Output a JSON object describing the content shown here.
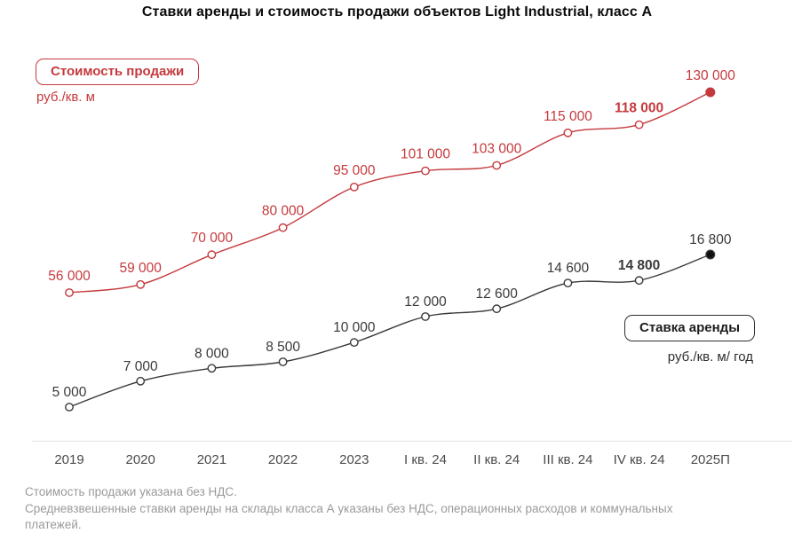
{
  "title": "Ставки аренды и стоимость продажи объектов Light Industrial, класс А",
  "colors": {
    "sale_series": "#c5393d",
    "rent_series": "#3a3a3a",
    "rent_final_dot": "#111111",
    "axis_line": "#e3e3e3",
    "tick_label": "#4a4a4a",
    "footnote": "#9a9a9a"
  },
  "legend": {
    "sale": {
      "label": "Стоимость продажи",
      "unit": "руб./кв. м"
    },
    "rent": {
      "label": "Ставка аренды",
      "unit": "руб./кв. м/ год"
    }
  },
  "chart_data": {
    "type": "line",
    "title": "Ставки аренды и стоимость продажи объектов Light Industrial, класс А",
    "categories": [
      "2019",
      "2020",
      "2021",
      "2022",
      "2023",
      "I кв. 24",
      "II кв. 24",
      "III кв. 24",
      "IV кв. 24",
      "2025П"
    ],
    "series": [
      {
        "name": "Стоимость продажи",
        "unit": "руб./кв. м",
        "color_key": "sale_series",
        "values": [
          56000,
          59000,
          70000,
          80000,
          95000,
          101000,
          103000,
          115000,
          118000,
          130000
        ],
        "labels": [
          "56 000",
          "59 000",
          "70 000",
          "80 000",
          "95 000",
          "101 000",
          "103 000",
          "115 000",
          "118 000",
          "130 000"
        ],
        "bold_label_index": 8,
        "last_point_filled": true
      },
      {
        "name": "Ставка аренды",
        "unit": "руб./кв. м/ год",
        "color_key": "rent_series",
        "values": [
          5000,
          7000,
          8000,
          8500,
          10000,
          12000,
          12600,
          14600,
          14800,
          16800
        ],
        "labels": [
          "5 000",
          "7 000",
          "8 000",
          "8 500",
          "10 000",
          "12 000",
          "12 600",
          "14 600",
          "14 800",
          "16 800"
        ],
        "bold_label_index": 8,
        "last_point_filled": true
      }
    ],
    "grid": false,
    "legend_position": "sale: top-left boxed; rent: middle-right boxed",
    "notes": "final period 2025П is a forecast (filled dots); IV кв. 24 labels are bold"
  },
  "footnotes": {
    "lines": [
      "Стоимость продажи указана без НДС.",
      "Средневзвешенные ставки аренды на склады класса А указаны без НДС, операционных расходов и коммунальных",
      "платежей."
    ]
  }
}
